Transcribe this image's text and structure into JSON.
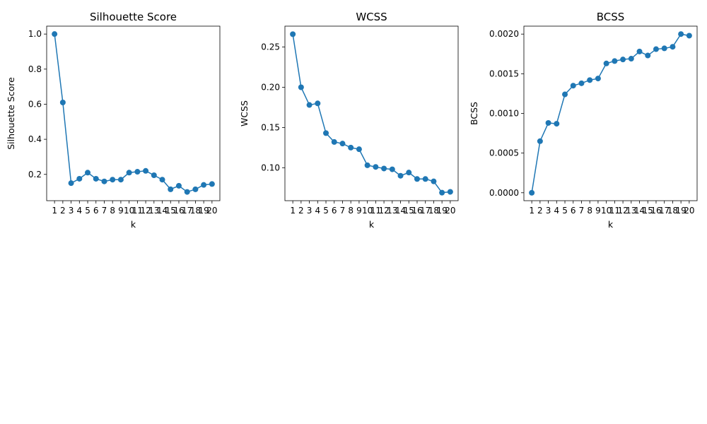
{
  "chart_data": [
    {
      "type": "line",
      "title": "Silhouette Score",
      "xlabel": "k",
      "ylabel": "Silhouette Score",
      "x": [
        1,
        2,
        3,
        4,
        5,
        6,
        7,
        8,
        9,
        10,
        11,
        12,
        13,
        14,
        15,
        16,
        17,
        18,
        19,
        20
      ],
      "values": [
        1.0,
        0.61,
        0.15,
        0.175,
        0.21,
        0.175,
        0.16,
        0.17,
        0.17,
        0.21,
        0.215,
        0.22,
        0.195,
        0.17,
        0.115,
        0.135,
        0.1,
        0.115,
        0.14,
        0.145
      ],
      "ylim": [
        0.05,
        1.045
      ],
      "yticks": [
        "0.2",
        "0.4",
        "0.6",
        "0.8",
        "1.0"
      ],
      "ytick_values": [
        0.2,
        0.4,
        0.6,
        0.8,
        1.0
      ],
      "grid": false,
      "color": "#1f77b4"
    },
    {
      "type": "line",
      "title": "WCSS",
      "xlabel": "k",
      "ylabel": "WCSS",
      "x": [
        1,
        2,
        3,
        4,
        5,
        6,
        7,
        8,
        9,
        10,
        11,
        12,
        13,
        14,
        15,
        16,
        17,
        18,
        19,
        20
      ],
      "values": [
        0.266,
        0.2,
        0.178,
        0.18,
        0.143,
        0.132,
        0.13,
        0.125,
        0.123,
        0.103,
        0.101,
        0.099,
        0.098,
        0.09,
        0.094,
        0.086,
        0.086,
        0.083,
        0.069,
        0.07
      ],
      "ylim": [
        0.059,
        0.276
      ],
      "yticks": [
        "0.10",
        "0.15",
        "0.20",
        "0.25"
      ],
      "ytick_values": [
        0.1,
        0.15,
        0.2,
        0.25
      ],
      "grid": false,
      "color": "#1f77b4"
    },
    {
      "type": "line",
      "title": "BCSS",
      "xlabel": "k",
      "ylabel": "BCSS",
      "x": [
        1,
        2,
        3,
        4,
        5,
        6,
        7,
        8,
        9,
        10,
        11,
        12,
        13,
        14,
        15,
        16,
        17,
        18,
        19,
        20
      ],
      "values": [
        0.0,
        0.00065,
        0.00088,
        0.00087,
        0.00124,
        0.00135,
        0.00138,
        0.00142,
        0.00144,
        0.00163,
        0.00166,
        0.00168,
        0.00169,
        0.00178,
        0.00173,
        0.00181,
        0.00182,
        0.00184,
        0.002,
        0.00198
      ],
      "ylim": [
        -0.0001,
        0.0021
      ],
      "yticks": [
        "0.0000",
        "0.0005",
        "0.0010",
        "0.0015",
        "0.0020"
      ],
      "ytick_values": [
        0.0,
        0.0005,
        0.001,
        0.0015,
        0.002
      ],
      "grid": false,
      "color": "#1f77b4"
    }
  ]
}
